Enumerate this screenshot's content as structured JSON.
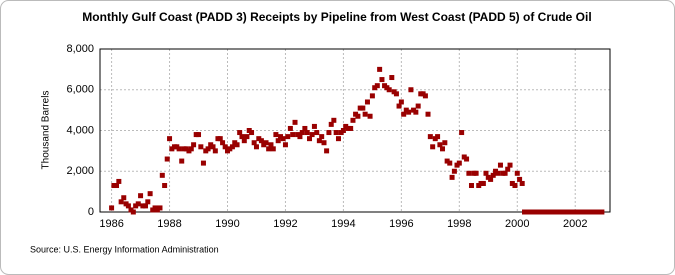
{
  "chart_data": {
    "type": "scatter",
    "title": "Monthly Gulf Coast (PADD 3) Receipts by Pipeline from West Coast (PADD 5) of Crude Oil",
    "y_label": "Thousand Barrels",
    "source": "Source: U.S. Energy Information Administration",
    "xlim": [
      1985.6,
      2003.2
    ],
    "xticks": [
      1986,
      1988,
      1990,
      1992,
      1994,
      1996,
      1998,
      2000,
      2002
    ],
    "ylim": [
      0,
      8000
    ],
    "yticks": [
      0,
      {
        "value": 2000,
        "label": "2,000"
      },
      {
        "value": 4000,
        "label": "4,000"
      },
      {
        "value": 6000,
        "label": "6,000"
      },
      {
        "value": 8000,
        "label": "8,000"
      }
    ],
    "grid": true,
    "series": [
      {
        "color": "#990000",
        "x": [
          1986,
          1986.08,
          1986.17,
          1986.25,
          1986.33,
          1986.42,
          1986.5,
          1986.58,
          1986.67,
          1986.75,
          1986.83,
          1986.92,
          1987,
          1987.08,
          1987.17,
          1987.25,
          1987.33,
          1987.42,
          1987.5,
          1987.58,
          1987.67,
          1987.75,
          1987.83,
          1987.92,
          1988,
          1988.08,
          1988.17,
          1988.25,
          1988.33,
          1988.42,
          1988.5,
          1988.58,
          1988.67,
          1988.75,
          1988.83,
          1988.92,
          1989,
          1989.08,
          1989.17,
          1989.25,
          1989.33,
          1989.42,
          1989.5,
          1989.58,
          1989.67,
          1989.75,
          1989.83,
          1989.92,
          1990,
          1990.08,
          1990.17,
          1990.25,
          1990.33,
          1990.42,
          1990.5,
          1990.58,
          1990.67,
          1990.75,
          1990.83,
          1990.92,
          1991,
          1991.08,
          1991.17,
          1991.25,
          1991.33,
          1991.42,
          1991.5,
          1991.58,
          1991.67,
          1991.75,
          1991.83,
          1991.92,
          1992,
          1992.08,
          1992.17,
          1992.25,
          1992.33,
          1992.42,
          1992.5,
          1992.58,
          1992.67,
          1992.75,
          1992.83,
          1992.92,
          1993,
          1993.08,
          1993.17,
          1993.25,
          1993.33,
          1993.42,
          1993.5,
          1993.58,
          1993.67,
          1993.75,
          1993.83,
          1993.92,
          1994,
          1994.08,
          1994.17,
          1994.25,
          1994.33,
          1994.42,
          1994.5,
          1994.58,
          1994.67,
          1994.75,
          1994.83,
          1994.92,
          1995,
          1995.08,
          1995.17,
          1995.25,
          1995.33,
          1995.42,
          1995.5,
          1995.58,
          1995.67,
          1995.75,
          1995.83,
          1995.92,
          1996,
          1996.08,
          1996.17,
          1996.25,
          1996.33,
          1996.42,
          1996.5,
          1996.58,
          1996.67,
          1996.75,
          1996.83,
          1996.92,
          1997,
          1997.08,
          1997.17,
          1997.25,
          1997.33,
          1997.42,
          1997.5,
          1997.58,
          1997.67,
          1997.75,
          1997.83,
          1997.92,
          1998,
          1998.08,
          1998.17,
          1998.25,
          1998.33,
          1998.42,
          1998.5,
          1998.58,
          1998.67,
          1998.75,
          1998.83,
          1998.92,
          1999,
          1999.08,
          1999.17,
          1999.25,
          1999.33,
          1999.42,
          1999.5,
          1999.58,
          1999.67,
          1999.75,
          1999.83,
          1999.92,
          2000,
          2000.08,
          2000.17,
          2000.25,
          2000.33,
          2000.42,
          2000.5,
          2000.58,
          2000.67,
          2000.75,
          2000.83,
          2000.92,
          2001,
          2001.08,
          2001.17,
          2001.25,
          2001.33,
          2001.42,
          2001.5,
          2001.58,
          2001.67,
          2001.75,
          2001.83,
          2001.92,
          2002,
          2002.08,
          2002.17,
          2002.25,
          2002.33,
          2002.42,
          2002.5,
          2002.58,
          2002.67,
          2002.75,
          2002.83,
          2002.92
        ],
        "values": [
          200,
          1300,
          1300,
          1500,
          500,
          700,
          400,
          300,
          100,
          0,
          300,
          400,
          800,
          300,
          300,
          500,
          900,
          100,
          200,
          100,
          200,
          1800,
          1300,
          2600,
          3600,
          3100,
          3200,
          3200,
          3100,
          2500,
          3100,
          3100,
          3000,
          3100,
          3300,
          3800,
          3800,
          3200,
          2400,
          3000,
          3100,
          3300,
          3200,
          3000,
          3600,
          3600,
          3400,
          3200,
          3000,
          3100,
          3200,
          3400,
          3300,
          3900,
          3700,
          3500,
          3700,
          4000,
          3900,
          3400,
          3200,
          3600,
          3500,
          3300,
          3400,
          3100,
          3300,
          3100,
          3800,
          3500,
          3700,
          3600,
          3300,
          3700,
          4100,
          3800,
          4400,
          3800,
          3700,
          3900,
          4100,
          3900,
          3600,
          3800,
          4200,
          3900,
          3500,
          3700,
          3400,
          3000,
          3900,
          4300,
          4500,
          3900,
          3600,
          3900,
          4000,
          4200,
          4100,
          4100,
          4500,
          4800,
          4700,
          5100,
          5100,
          4800,
          5400,
          4700,
          5700,
          6100,
          6200,
          7000,
          6500,
          6200,
          6100,
          6000,
          6600,
          5900,
          5800,
          5200,
          5400,
          4800,
          5000,
          4900,
          6000,
          5000,
          4900,
          5200,
          5800,
          5800,
          5700,
          4800,
          3700,
          3200,
          3600,
          3700,
          3300,
          3100,
          3400,
          2500,
          2400,
          1700,
          2000,
          2300,
          2400,
          3900,
          2700,
          2600,
          1900,
          1300,
          1900,
          1900,
          1300,
          1400,
          1400,
          1900,
          1700,
          1600,
          1800,
          2000,
          1900,
          2300,
          1900,
          1900,
          2100,
          2300,
          1400,
          1300,
          1900,
          1600,
          1400,
          0,
          0,
          0,
          0,
          0,
          0,
          0,
          0,
          0,
          0,
          0,
          0,
          0,
          0,
          0,
          0,
          0,
          0,
          0,
          0,
          0,
          0,
          0,
          0,
          0,
          0,
          0,
          0,
          0,
          0,
          0,
          0,
          0
        ]
      }
    ]
  }
}
